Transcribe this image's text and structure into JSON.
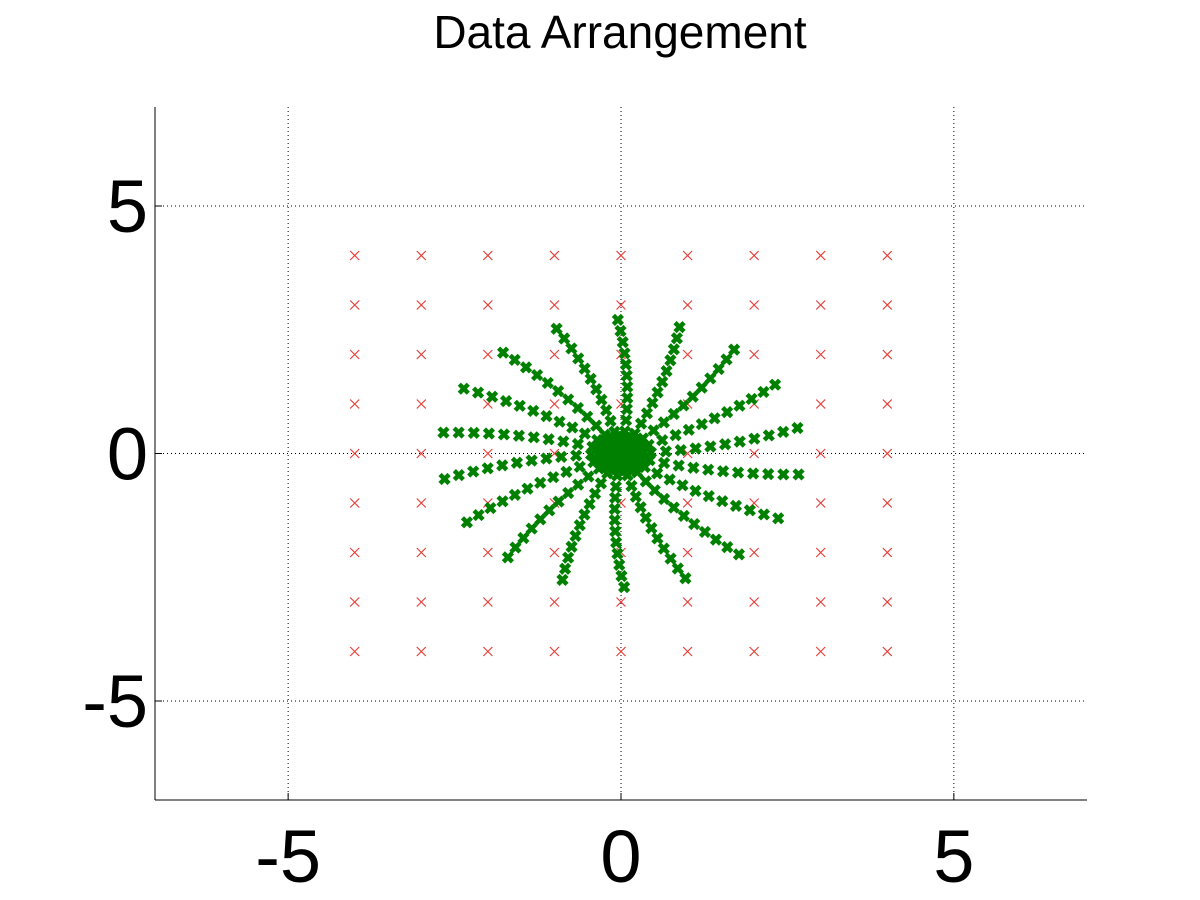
{
  "chart_data": {
    "type": "scatter",
    "title": "Data Arrangement",
    "xlabel": "",
    "ylabel": "",
    "xlim": [
      -7,
      7
    ],
    "ylim": [
      -7,
      7
    ],
    "xticks": [
      -5,
      0,
      5
    ],
    "yticks": [
      5,
      0,
      -5
    ],
    "xtick_labels": [
      "-5",
      "0",
      "5"
    ],
    "ytick_labels": [
      "5",
      "0",
      "-5"
    ],
    "grid": true,
    "box": false,
    "series": [
      {
        "marker": "x",
        "color": "#e8403a",
        "grid_x": [
          -4,
          -3,
          -2,
          -1,
          0,
          1,
          2,
          3,
          4
        ],
        "grid_y": [
          -4,
          -3,
          -2,
          -1,
          0,
          1,
          2,
          3,
          4
        ]
      },
      {
        "marker": "x-bold",
        "color": "#008000",
        "pattern": "spiral-rays",
        "rays": 18,
        "points_per_ray": 12,
        "max_radius": 2.7,
        "ray_angle_offset_deg": 1,
        "ray_twist_deg": 10
      }
    ]
  }
}
